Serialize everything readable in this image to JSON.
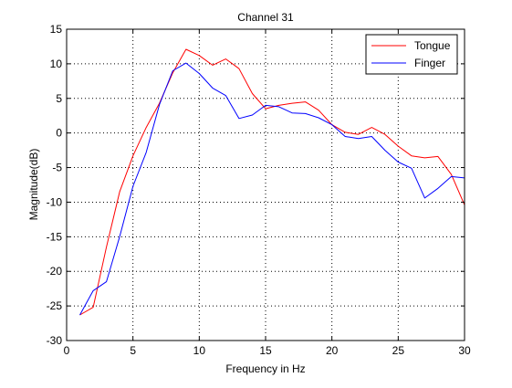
{
  "chart_data": {
    "type": "line",
    "title": "Channel 31",
    "xlabel": "Frequency in Hz",
    "ylabel": "Magnitude(dB)",
    "xlim": [
      0,
      30
    ],
    "ylim": [
      -30,
      15
    ],
    "xticks": [
      0,
      5,
      10,
      15,
      20,
      25,
      30
    ],
    "yticks": [
      -30,
      -25,
      -20,
      -15,
      -10,
      -5,
      0,
      5,
      10,
      15
    ],
    "grid": true,
    "grid_style": "dotted",
    "legend_position": "top-right",
    "x": [
      1,
      2,
      3,
      4,
      5,
      6,
      7,
      8,
      9,
      10,
      11,
      12,
      13,
      14,
      15,
      16,
      17,
      18,
      19,
      20,
      21,
      22,
      23,
      24,
      25,
      26,
      27,
      28,
      29,
      30
    ],
    "series": [
      {
        "name": "Tongue",
        "color": "#ff0000",
        "values": [
          -26.3,
          -25.2,
          -16.5,
          -8.5,
          -3.3,
          0.8,
          4.3,
          8.7,
          12.1,
          11.2,
          9.8,
          10.7,
          9.3,
          5.7,
          3.5,
          4.0,
          4.3,
          4.5,
          3.3,
          1.2,
          0.1,
          -0.2,
          0.8,
          -0.2,
          -1.9,
          -3.3,
          -3.6,
          -3.4,
          -6.0,
          -10.4
        ]
      },
      {
        "name": "Finger",
        "color": "#0000ff",
        "values": [
          -26.3,
          -22.8,
          -21.5,
          -15.0,
          -7.7,
          -2.8,
          4.1,
          9.0,
          10.1,
          8.6,
          6.5,
          5.4,
          2.1,
          2.6,
          4.0,
          3.8,
          2.9,
          2.8,
          2.2,
          1.2,
          -0.5,
          -0.8,
          -0.5,
          -2.5,
          -4.2,
          -5.1,
          -9.4,
          -8.0,
          -6.3,
          -6.5
        ]
      }
    ]
  }
}
